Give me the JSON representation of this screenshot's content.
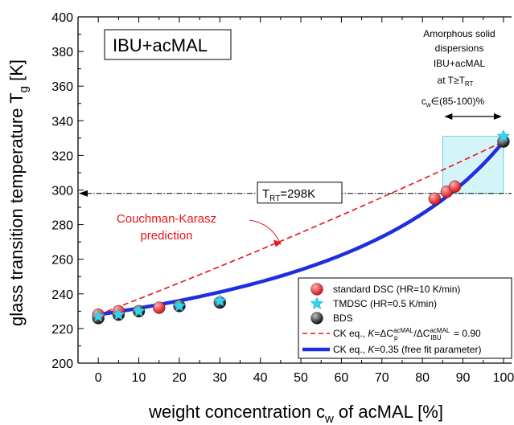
{
  "chart_data": {
    "type": "scatter",
    "panel_label": "IBU+acMAL",
    "xlabel_main": "weight concentration c",
    "xlabel_sub": "w",
    "xlabel_tail": " of acMAL  [%]",
    "ylabel_main": "glass transition temperature T",
    "ylabel_sub": "g",
    "ylabel_tail": " [K]",
    "xlim": [
      -5,
      102
    ],
    "ylim": [
      200,
      400
    ],
    "xticks": [
      "0",
      "10",
      "20",
      "30",
      "40",
      "50",
      "60",
      "70",
      "80",
      "90",
      "100"
    ],
    "yticks": [
      "200",
      "220",
      "240",
      "260",
      "280",
      "300",
      "320",
      "340",
      "360",
      "380",
      "400"
    ],
    "series": [
      {
        "name": "standard DSC (HR=10 K/min)",
        "kind": "marker",
        "marker": "sphere",
        "color": "#e8131b",
        "x": [
          0,
          5,
          15,
          83,
          86,
          88
        ],
        "y": [
          228,
          230,
          232,
          295,
          299,
          302
        ]
      },
      {
        "name": "TMDSC (HR=0.5 K/min)",
        "kind": "marker",
        "marker": "star",
        "color": "#35d3f0",
        "x": [
          0,
          5,
          10,
          20,
          30,
          100
        ],
        "y": [
          227,
          228,
          230,
          233,
          236,
          331
        ]
      },
      {
        "name": "BDS",
        "kind": "marker",
        "marker": "sphere",
        "color": "#1a1a1a",
        "x": [
          0,
          5,
          10,
          20,
          30,
          100
        ],
        "y": [
          226,
          228,
          230,
          233,
          235,
          328
        ]
      },
      {
        "name": "CK eq., K=ΔCp(acMAL)/ΔCp(IBU) = 0.90",
        "kind": "line",
        "style": "dashed",
        "color": "#e8131b",
        "K": 0.9,
        "Tg1": 228,
        "Tg2": 328
      },
      {
        "name": "CK eq., K=0.35 (free fit parameter)",
        "kind": "line",
        "style": "solid",
        "color": "#1f2ee0",
        "K": 0.35,
        "Tg1": 228,
        "Tg2": 328
      }
    ],
    "legend_items": [
      {
        "label": "standard DSC (HR=10 K/min)"
      },
      {
        "label": "TMDSC (HR=0.5 K/min)"
      },
      {
        "label": "BDS"
      },
      {
        "label_pre": "CK eq., ",
        "label_K": "K",
        "label_eq": "=ΔC",
        "label_sup1": "acMAL",
        "label_subp1": "p",
        "label_slash": "/ΔC",
        "label_sup2": "acMAL",
        "label_sub2": "IBU",
        "label_val": " = 0.90"
      },
      {
        "label_pre": "CK eq., ",
        "label_K": "K",
        "label_rest": "=0.35 (free fit parameter)"
      }
    ],
    "legend_position": "bottom-right",
    "annotations": {
      "rt_label": "T",
      "rt_sub": "RT",
      "rt_value": "=298K",
      "rt_y": 298,
      "ck_label_line1": "Couchman-Karasz",
      "ck_label_line2": "prediction",
      "asd_line1": "Amorphous solid",
      "asd_line2": "dispersions",
      "asd_line3": "IBU+acMAL",
      "asd_line4": "at T≥T",
      "asd_line4_sub": "RT",
      "asd_line5_pre": "c",
      "asd_line5_sub": "w",
      "asd_line5_post": "∈(85-100)%",
      "asd_range": [
        85,
        100
      ],
      "asd_band_y": [
        298,
        331
      ]
    }
  }
}
